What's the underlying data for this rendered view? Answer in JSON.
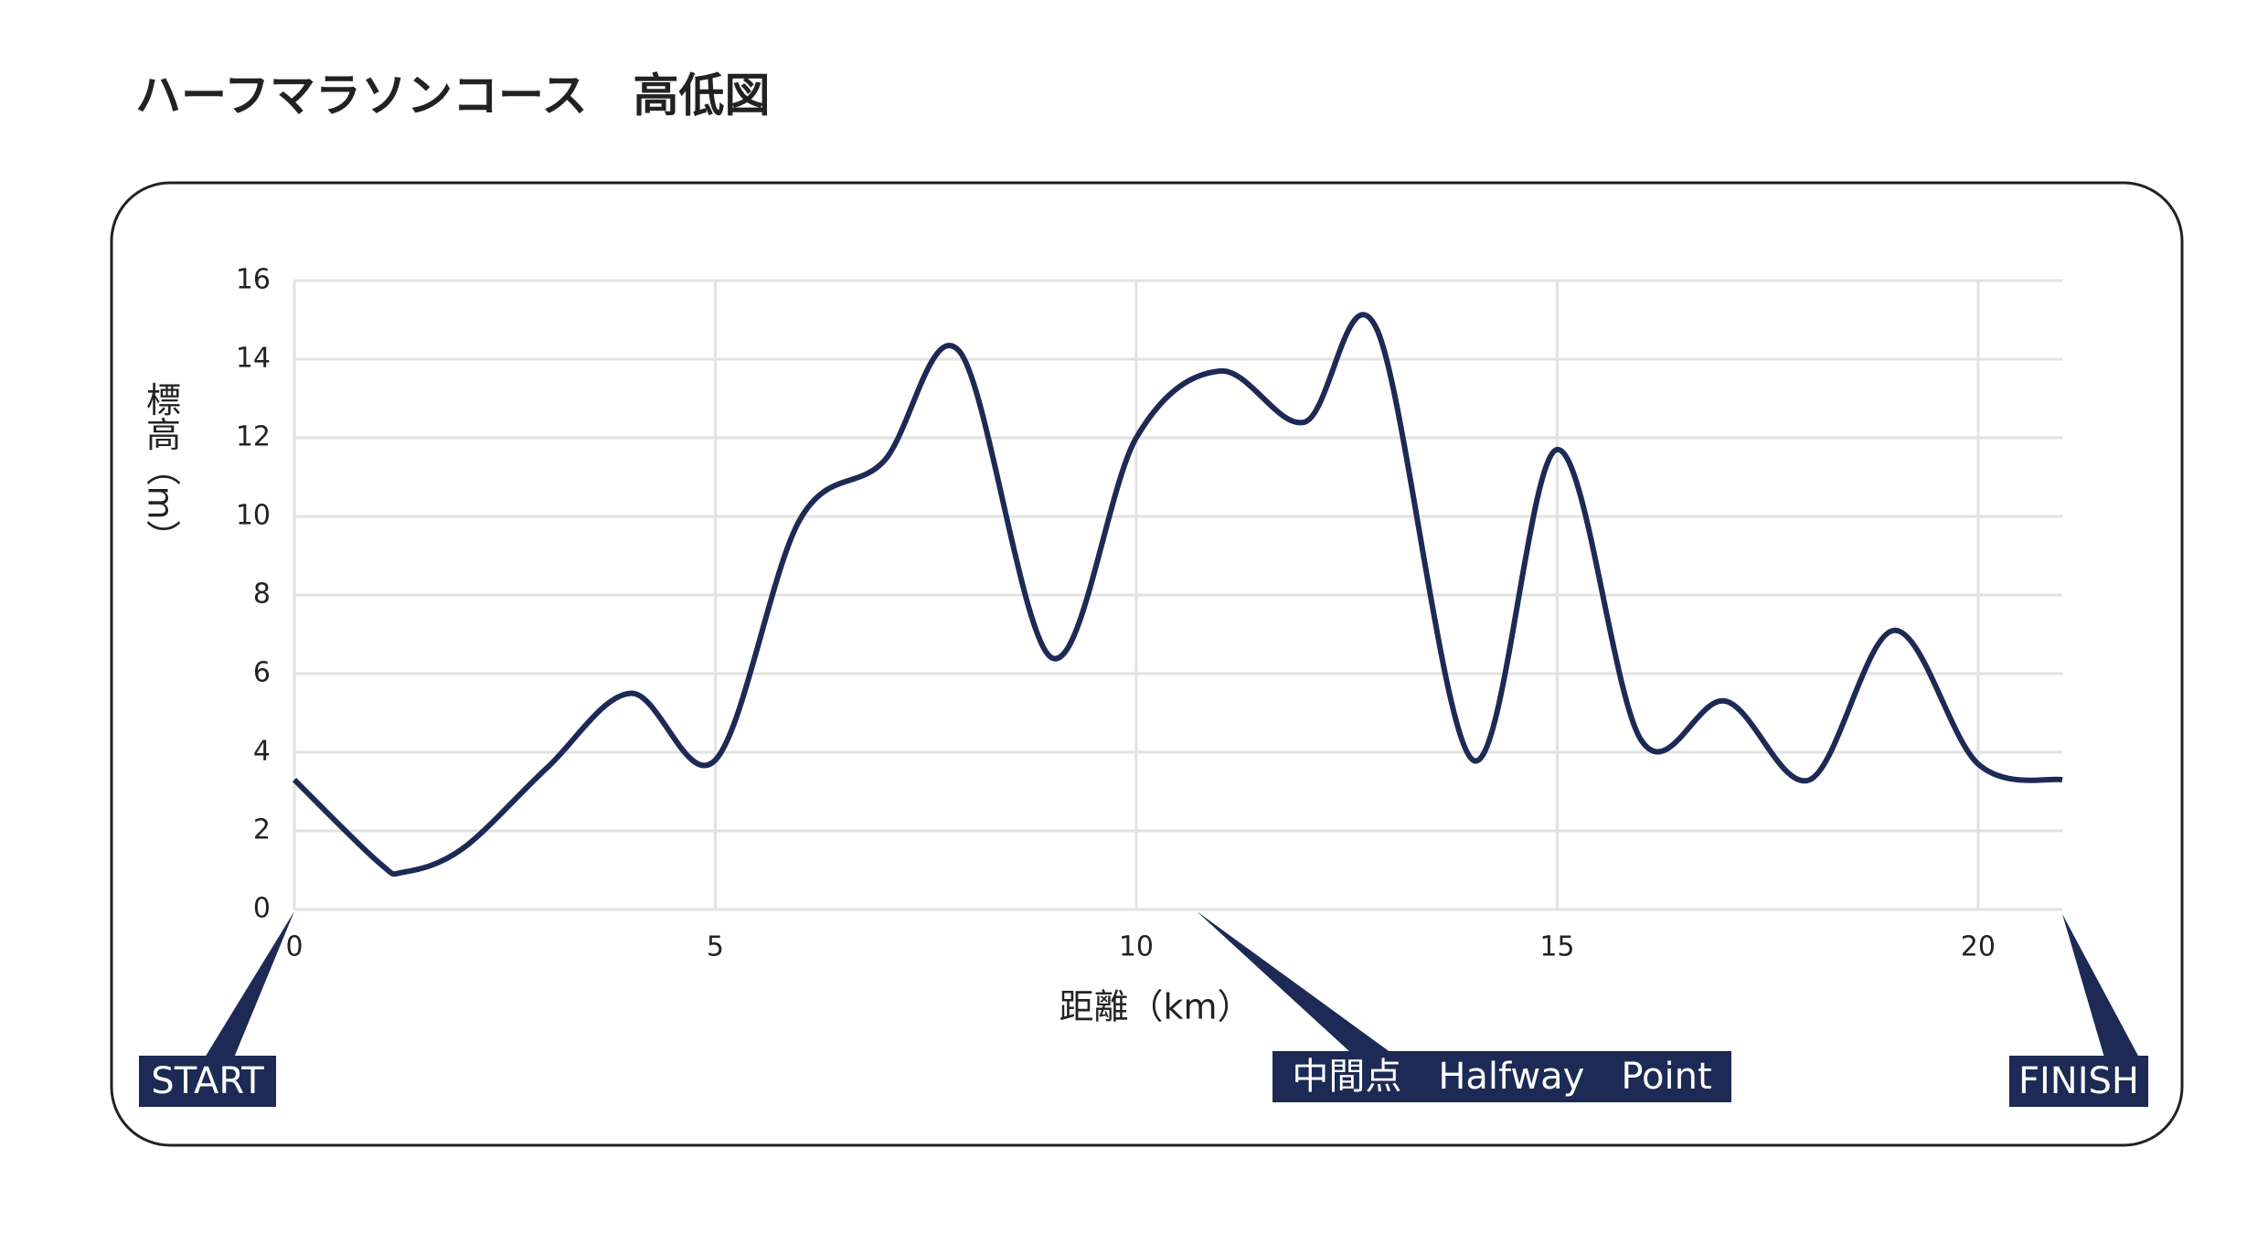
{
  "chart_data": {
    "type": "line",
    "title": "ハーフマラソンコース　高低図",
    "x_label": "距離（km）",
    "y_label": "標高（m）",
    "x": [
      0,
      1,
      1.3,
      2,
      3,
      4,
      5,
      6,
      7,
      7.9,
      9,
      10,
      11,
      12,
      12.85,
      14,
      15,
      16,
      17,
      18,
      19,
      20,
      21
    ],
    "series": [
      {
        "name": "標高",
        "color": "#1c2a55",
        "values": [
          3.3,
          1.2,
          0.95,
          1.55,
          3.6,
          5.5,
          3.8,
          9.9,
          11.4,
          14.2,
          6.4,
          12.0,
          13.7,
          12.4,
          14.8,
          3.8,
          11.7,
          4.3,
          5.3,
          3.3,
          7.1,
          3.7,
          3.3
        ]
      }
    ],
    "xlim": [
      0,
      21
    ],
    "xticks": [
      0,
      5,
      10,
      15,
      20
    ],
    "ylim": [
      0,
      16
    ],
    "yticks": [
      0,
      2,
      4,
      6,
      8,
      10,
      12,
      14,
      16
    ],
    "grid": true,
    "annotations": {
      "start": "START",
      "halfway": "中間点　Halfway　Point",
      "finish": "FINISH"
    }
  }
}
